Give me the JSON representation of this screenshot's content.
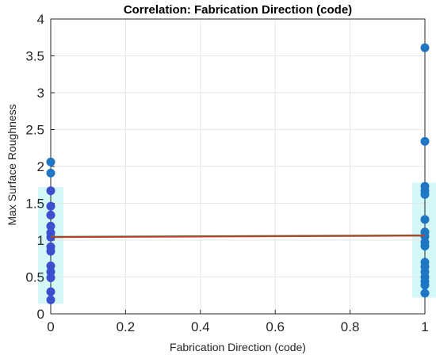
{
  "chart_data": {
    "type": "scatter",
    "title": "Correlation: Fabrication Direction (code)",
    "xlabel": "Fabrication Direction (code)",
    "ylabel": "Max Surface Roughness",
    "xlim": [
      0,
      1
    ],
    "ylim": [
      0,
      4
    ],
    "grid": true,
    "x_ticks": [
      0,
      0.2,
      0.4,
      0.6,
      0.8,
      1
    ],
    "x_tick_labels": [
      "0",
      "0.2",
      "0.4",
      "0.6",
      "0.8",
      "1"
    ],
    "y_ticks": [
      0,
      0.5,
      1,
      1.5,
      2,
      2.5,
      3,
      3.5,
      4
    ],
    "y_tick_labels": [
      "0",
      "0.5",
      "1",
      "1.5",
      "2",
      "2.5",
      "3",
      "3.5",
      "4"
    ],
    "series": [
      {
        "type": "scatter",
        "color": "#1f77c4",
        "x": [
          0,
          0,
          0,
          0,
          0,
          0,
          0,
          0,
          0,
          0,
          0,
          0,
          0,
          0,
          0
        ],
        "y": [
          2.06,
          1.91,
          1.67,
          1.46,
          1.34,
          1.19,
          1.1,
          0.91,
          0.85,
          0.65,
          0.57,
          0.49,
          0.3,
          0.19,
          1.04
        ]
      },
      {
        "type": "scatter",
        "color": "#1f77c4",
        "x": [
          1,
          1,
          1,
          1,
          1,
          1,
          1,
          1,
          1,
          1,
          1,
          1,
          1,
          1,
          1,
          1,
          1
        ],
        "y": [
          3.61,
          2.34,
          1.73,
          1.67,
          1.62,
          1.28,
          1.11,
          0.97,
          0.92,
          0.7,
          0.64,
          0.57,
          0.5,
          0.44,
          0.39,
          0.28,
          1.05
        ]
      },
      {
        "type": "line",
        "color": "#c0392b",
        "x": [
          0,
          1
        ],
        "y": [
          1.04,
          1.06
        ]
      }
    ],
    "colors": {
      "points": "#1f77c4",
      "points_overlay": "#3b4fcf",
      "fit_line": "#c0392b",
      "fit_line_shadow": "#2e9a3a",
      "band": "#d4f7f7",
      "grid": "#e6e6e6",
      "axis": "#262626"
    }
  }
}
